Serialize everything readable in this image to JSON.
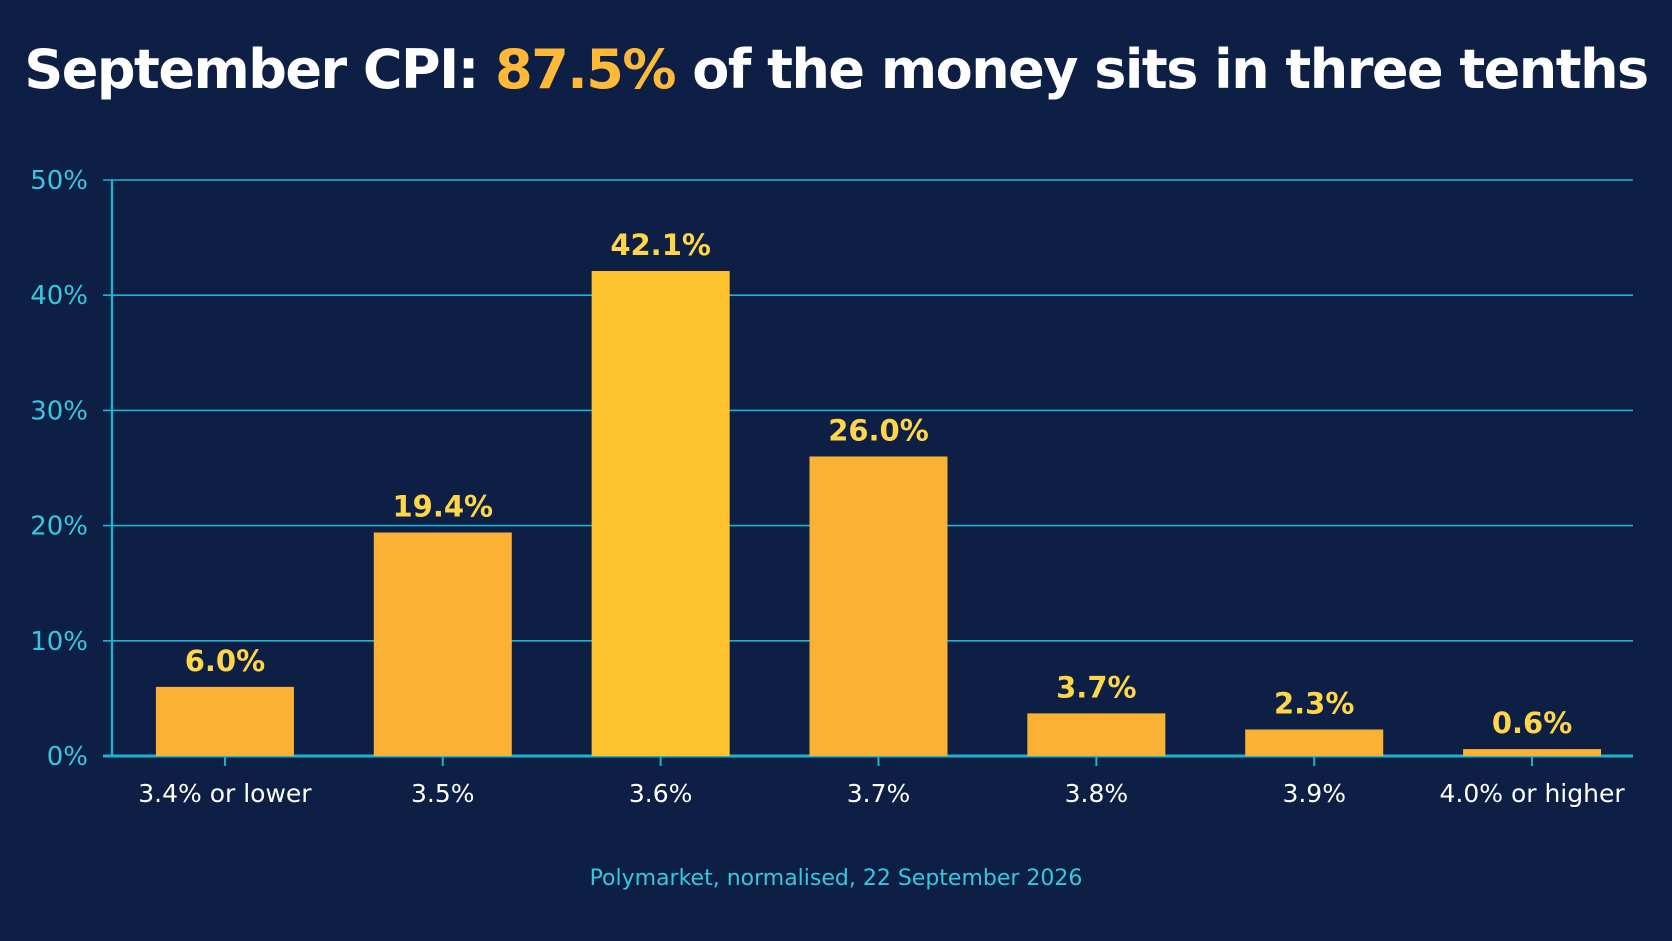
{
  "title": {
    "prefix": "September CPI: ",
    "highlight": "87.5%",
    "suffix": " of the money sits in three tenths"
  },
  "source": "Polymarket, normalised, 22 September 2026",
  "colors": {
    "background": "#0d1f45",
    "accent": "#ffb938",
    "bar_peak": "#ffc42e",
    "bar": "#fbb134",
    "grid": "#1fb3cc",
    "axis_text": "#35c8e0",
    "label_text": "#ffd54a",
    "category_text": "#ffffff"
  },
  "chart_data": {
    "type": "bar",
    "title": "September CPI: 87.5% of the money sits in three tenths",
    "xlabel": "",
    "ylabel": "",
    "categories": [
      "3.4% or lower",
      "3.5%",
      "3.6%",
      "3.7%",
      "3.8%",
      "3.9%",
      "4.0% or higher"
    ],
    "values": [
      6.0,
      19.4,
      42.1,
      26.0,
      3.7,
      2.3,
      0.6
    ],
    "value_labels": [
      "6.0%",
      "19.4%",
      "42.1%",
      "26.0%",
      "3.7%",
      "2.3%",
      "0.6%"
    ],
    "ylim": [
      0,
      50
    ],
    "yticks": [
      0,
      10,
      20,
      30,
      40,
      50
    ],
    "ytick_labels": [
      "0%",
      "10%",
      "20%",
      "30%",
      "40%",
      "50%"
    ],
    "grid": true,
    "legend": "none"
  }
}
